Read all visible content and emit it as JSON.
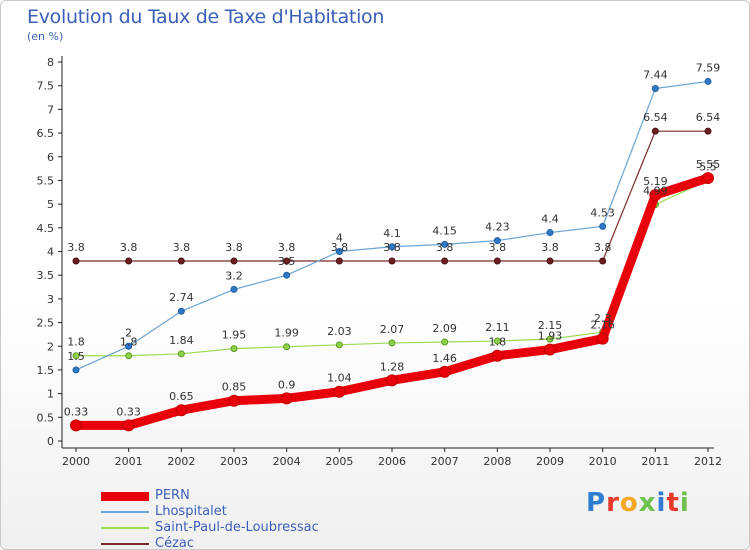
{
  "title": "Evolution du Taux de Taxe d'Habitation",
  "subtitle": "(en %)",
  "brand": "Proxiti",
  "chart_data": {
    "type": "line",
    "x": [
      "2000",
      "2001",
      "2002",
      "2003",
      "2004",
      "2005",
      "2006",
      "2007",
      "2008",
      "2009",
      "2010",
      "2011",
      "2012"
    ],
    "ylim": [
      0,
      8
    ],
    "yticks": [
      "0",
      "0.5",
      "1",
      "1.5",
      "2",
      "2.5",
      "3",
      "3.5",
      "4",
      "4.5",
      "5",
      "5.5",
      "6",
      "6.5",
      "7",
      "7.5",
      "8"
    ],
    "grid": false,
    "legend_position": "bottom-left",
    "series": [
      {
        "name": "PERN",
        "color": "#e8000a",
        "values": [
          0.33,
          0.33,
          0.65,
          0.85,
          0.9,
          1.04,
          1.28,
          1.46,
          1.8,
          1.93,
          2.16,
          5.19,
          5.55
        ],
        "labels": [
          "0.33",
          "0.33",
          "0.65",
          "0.85",
          "0.9",
          "1.04",
          "1.28",
          "1.46",
          "1.8",
          "1.93",
          "2.16",
          "5.19",
          "5.55"
        ]
      },
      {
        "name": "Lhospitalet",
        "color": "#6aa3d5",
        "values": [
          1.5,
          2,
          2.74,
          3.2,
          3.5,
          4,
          4.1,
          4.15,
          4.23,
          4.4,
          4.53,
          7.44,
          7.59
        ],
        "labels": [
          "1.5",
          "2",
          "2.74",
          "3.2",
          "3.5",
          "4",
          "4.1",
          "4.15",
          "4.23",
          "4.4",
          "4.53",
          "7.44",
          "7.59"
        ]
      },
      {
        "name": "Saint-Paul-de-Loubressac",
        "color": "#9cdb55",
        "values": [
          1.8,
          1.8,
          1.84,
          1.95,
          1.99,
          2.03,
          2.07,
          2.09,
          2.11,
          2.15,
          2.3,
          4.99,
          5.5
        ],
        "labels": [
          "1.8",
          "1.8",
          "1.84",
          "1.95",
          "1.99",
          "2.03",
          "2.07",
          "2.09",
          "2.11",
          "2.15",
          "2.3",
          "4.99",
          "5.5"
        ]
      },
      {
        "name": "Cézac",
        "color": "#7a2a2a",
        "values": [
          3.8,
          3.8,
          3.8,
          3.8,
          3.8,
          3.8,
          3.8,
          3.8,
          3.8,
          3.8,
          3.8,
          6.54,
          6.54
        ],
        "labels": [
          "3.8",
          "3.8",
          "3.8",
          "3.8",
          "3.8",
          "3.8",
          "3.8",
          "3.8",
          "3.8",
          "3.8",
          "3.8",
          "6.54",
          "6.54"
        ]
      }
    ]
  }
}
